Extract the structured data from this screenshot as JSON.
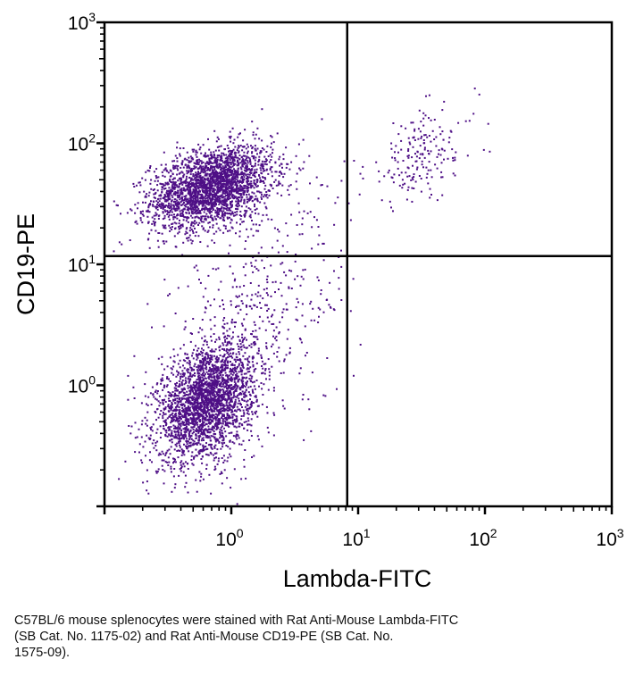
{
  "chart_data": {
    "type": "scatter",
    "subtype": "flow cytometry dot plot with quadrant gates",
    "xlabel": "Lambda-FITC",
    "ylabel": "CD19-PE",
    "xscale": "log",
    "yscale": "log",
    "xlim": [
      0.1,
      1000
    ],
    "ylim": [
      0.1,
      1000
    ],
    "x_ticks": [
      {
        "base": "10",
        "exp": "0",
        "value": 1
      },
      {
        "base": "10",
        "exp": "1",
        "value": 10
      },
      {
        "base": "10",
        "exp": "2",
        "value": 100
      },
      {
        "base": "10",
        "exp": "3",
        "value": 1000
      }
    ],
    "y_ticks": [
      {
        "base": "10",
        "exp": "0",
        "value": 1
      },
      {
        "base": "10",
        "exp": "1",
        "value": 10
      },
      {
        "base": "10",
        "exp": "2",
        "value": 100
      },
      {
        "base": "10",
        "exp": "3",
        "value": 1000
      }
    ],
    "quadrant_gate": {
      "x": 8.2,
      "y": 11.7
    },
    "point_color": "#4e0f86",
    "populations": [
      {
        "x_center": 0.69,
        "y_center": 44,
        "x_spread_decades": 0.24,
        "y_spread_decades": 0.17,
        "count": 2600
      },
      {
        "x_center": 31,
        "y_center": 80,
        "x_spread_decades": 0.22,
        "y_spread_decades": 0.2,
        "count": 190
      },
      {
        "x_center": 0.62,
        "y_center": 0.74,
        "x_spread_decades": 0.19,
        "y_spread_decades": 0.24,
        "count": 2600
      },
      {
        "x_center": 1.6,
        "y_center": 3.5,
        "x_spread_decades": 0.35,
        "y_spread_decades": 0.55,
        "count": 450
      }
    ],
    "grid": false
  },
  "caption": {
    "lines": [
      "C57BL/6 mouse splenocytes were stained with Rat Anti-Mouse Lambda-FITC",
      "(SB Cat. No. 1175-02) and Rat Anti-Mouse CD19-PE (SB Cat. No.",
      "1575-09)."
    ]
  }
}
